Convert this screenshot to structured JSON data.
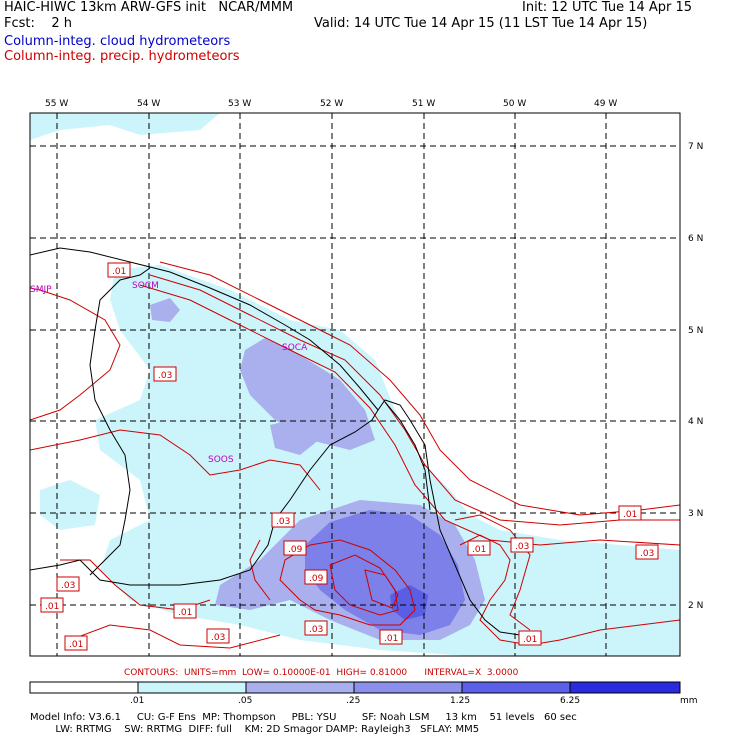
{
  "header": {
    "title_left": "HAIC-HIWC 13km ARW-GFS init   NCAR/MMM",
    "fcst": "Fcst:    2 h",
    "init": "Init: 12 UTC Tue 14 Apr 15",
    "valid": "Valid: 14 UTC Tue 14 Apr 15 (11 LST Tue 14 Apr 15)",
    "field_cloud": "Column-integ. cloud hydrometeors",
    "field_precip": "Column-integ. precip. hydrometeors"
  },
  "map": {
    "longitudes": [
      "55 W",
      "54 W",
      "53 W",
      "52 W",
      "51 W",
      "50 W",
      "49 W"
    ],
    "latitudes": [
      "7 N",
      "6 N",
      "5 N",
      "4 N",
      "3 N",
      "2 N"
    ],
    "stations": [
      "SMJP",
      "SOCM",
      "SOCA",
      "SOOS"
    ],
    "contour_labels": [
      ".01",
      ".03",
      ".01",
      ".03",
      ".09",
      ".09",
      ".01",
      ".03",
      ".03",
      ".01",
      ".01",
      ".03",
      ".03",
      ".01",
      ".01"
    ],
    "colors": {
      "cloud_light": "#ccf4fb",
      "cloud_mid": "#aab0ee",
      "cloud_dark": "#6c70e6",
      "cloud_max": "#1f1fe0",
      "precip_contour": "#cc0000",
      "boundary": "#000000"
    }
  },
  "contours_text": "CONTOURS:  UNITS=mm  LOW= 0.10000E-01  HIGH= 0.81000      INTERVAL=X  3.0000",
  "colorbar": {
    "ticks": [
      ".01",
      ".05",
      ".25",
      "1.25",
      "6.25"
    ],
    "unit": "mm",
    "colors": [
      "#ffffff",
      "#ccf4fb",
      "#aab0ee",
      "#8c90ec",
      "#5c60e8",
      "#2a2ae0"
    ]
  },
  "model_info": {
    "line1": "Model Info: V3.6.1     CU: G-F Ens  MP: Thompson     PBL: YSU        SF: Noah LSM     13 km    51 levels   60 sec",
    "line2": "        LW: RRTMG    SW: RRTMG  DIFF: full    KM: 2D Smagor DAMP: Rayleigh3   SFLAY: MM5"
  }
}
